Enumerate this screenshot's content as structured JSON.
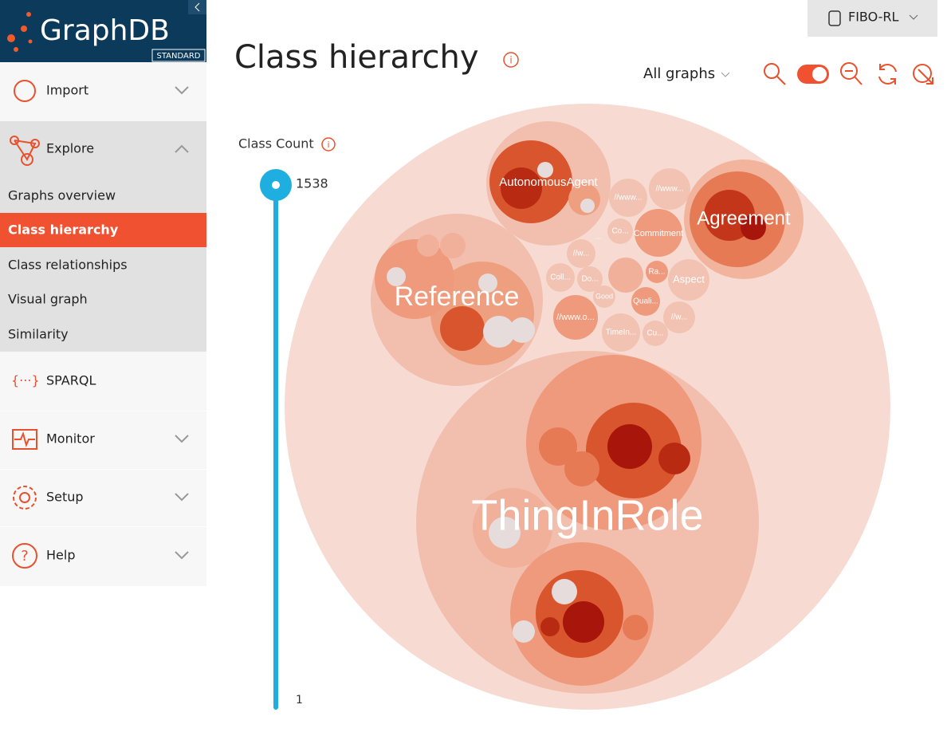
{
  "logo": {
    "title": "GraphDB",
    "edition": "STANDARD"
  },
  "repository": "FIBO-RL",
  "menu": [
    {
      "label": "Import"
    },
    {
      "label": "Explore",
      "submenu": [
        "Graphs overview",
        "Class hierarchy",
        "Class relationships",
        "Visual graph",
        "Similarity"
      ]
    },
    {
      "label": "SPARQL"
    },
    {
      "label": "Monitor"
    },
    {
      "label": "Setup"
    },
    {
      "label": "Help"
    }
  ],
  "page": {
    "title": "Class hierarchy",
    "graph_filter": "All graphs"
  },
  "class_count": {
    "label": "Class Count",
    "max": 1538,
    "min": 1
  },
  "bubbles": [
    "AutonomousAgent",
    "//www...",
    "//www...",
    "Agreement",
    "Co...",
    "Commitment",
    "...",
    "//w...",
    "Reference",
    "Coll...",
    "Do...",
    "Ra...",
    "Aspect",
    "Good",
    "Quali...",
    "//www.o...",
    "//w...",
    "TimeIn...",
    "Cu...",
    "ThingInRole"
  ]
}
